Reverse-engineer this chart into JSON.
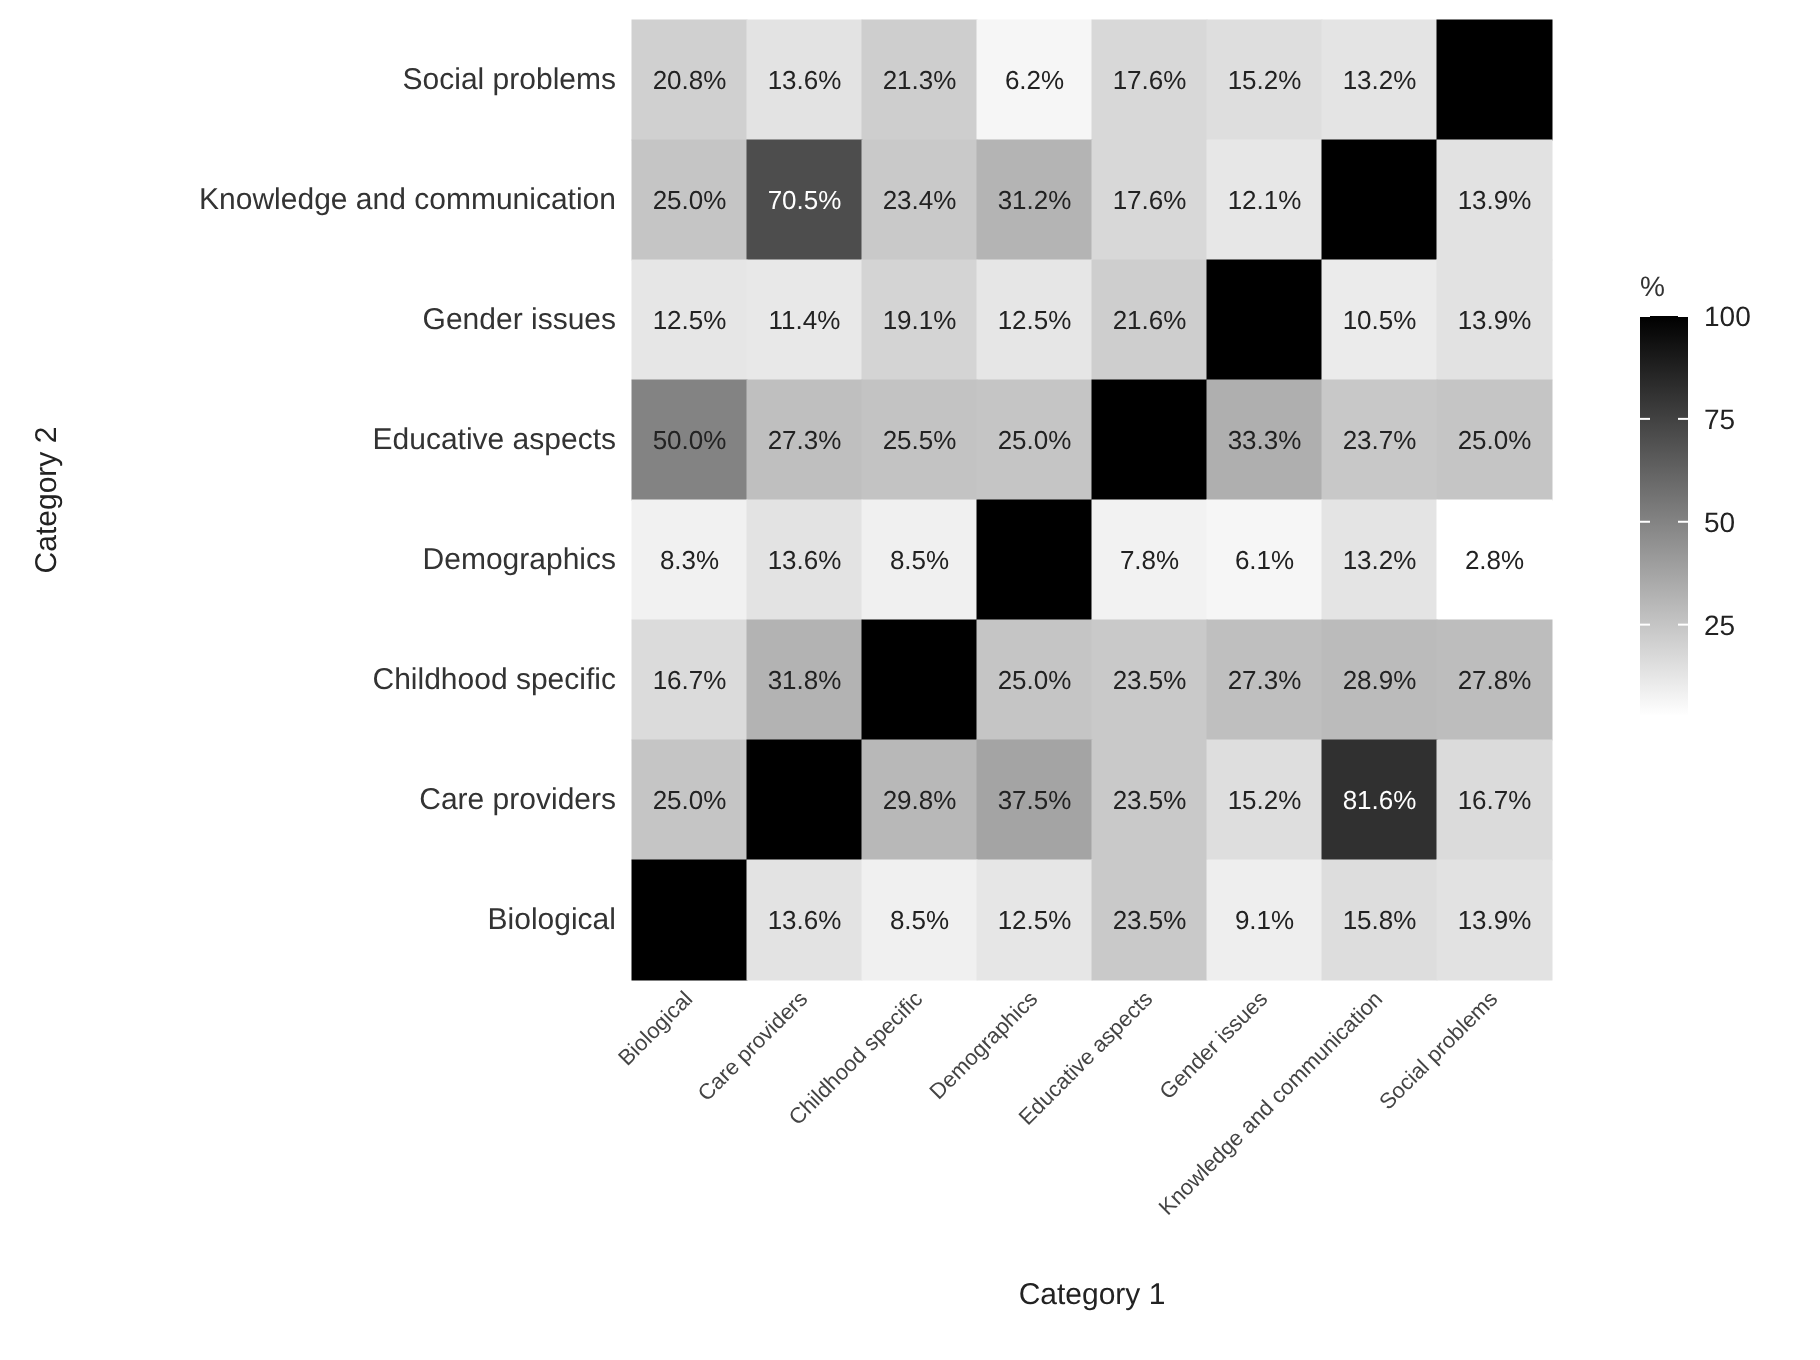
{
  "chart_data": {
    "type": "heatmap",
    "xlabel": "Category 1",
    "ylabel": "Category 2",
    "clabel": "%",
    "categories": [
      "Biological",
      "Care providers",
      "Childhood specific",
      "Demographics",
      "Educative aspects",
      "Gender issues",
      "Knowledge and communication",
      "Social problems"
    ],
    "y_categories": [
      "Social problems",
      "Knowledge and communication",
      "Gender issues",
      "Educative aspects",
      "Demographics",
      "Childhood specific",
      "Care providers",
      "Biological"
    ],
    "cells": [
      [
        20.8,
        13.6,
        21.3,
        6.2,
        17.6,
        15.2,
        13.2,
        100
      ],
      [
        25.0,
        70.5,
        23.4,
        31.2,
        17.6,
        12.1,
        100,
        13.9
      ],
      [
        12.5,
        11.4,
        19.1,
        12.5,
        21.6,
        100,
        10.5,
        13.9
      ],
      [
        50.0,
        27.3,
        25.5,
        25.0,
        100,
        33.3,
        23.7,
        25.0
      ],
      [
        8.3,
        13.6,
        8.5,
        100,
        7.8,
        6.1,
        13.2,
        2.8
      ],
      [
        16.7,
        31.8,
        100,
        25.0,
        23.5,
        27.3,
        28.9,
        27.8
      ],
      [
        25.0,
        100,
        29.8,
        37.5,
        23.5,
        15.2,
        81.6,
        16.7
      ],
      [
        100,
        13.6,
        8.5,
        12.5,
        23.5,
        9.1,
        15.8,
        13.9
      ]
    ],
    "cell_labels": [
      [
        "20.8%",
        "13.6%",
        "21.3%",
        "6.2%",
        "17.6%",
        "15.2%",
        "13.2%",
        null
      ],
      [
        "25.0%",
        "70.5%",
        "23.4%",
        "31.2%",
        "17.6%",
        "12.1%",
        null,
        "13.9%"
      ],
      [
        "12.5%",
        "11.4%",
        "19.1%",
        "12.5%",
        "21.6%",
        null,
        "10.5%",
        "13.9%"
      ],
      [
        "50.0%",
        "27.3%",
        "25.5%",
        "25.0%",
        null,
        "33.3%",
        "23.7%",
        "25.0%"
      ],
      [
        "8.3%",
        "13.6%",
        "8.5%",
        null,
        "7.8%",
        "6.1%",
        "13.2%",
        "2.8%"
      ],
      [
        "16.7%",
        "31.8%",
        null,
        "25.0%",
        "23.5%",
        "27.3%",
        "28.9%",
        "27.8%"
      ],
      [
        "25.0%",
        null,
        "29.8%",
        "37.5%",
        "23.5%",
        "15.2%",
        "81.6%",
        "16.7%"
      ],
      [
        null,
        "13.6%",
        "8.5%",
        "12.5%",
        "23.5%",
        "9.1%",
        "15.8%",
        "13.9%"
      ]
    ],
    "clim": [
      2.8,
      100
    ],
    "cticks": [
      25,
      50,
      75,
      100
    ]
  }
}
